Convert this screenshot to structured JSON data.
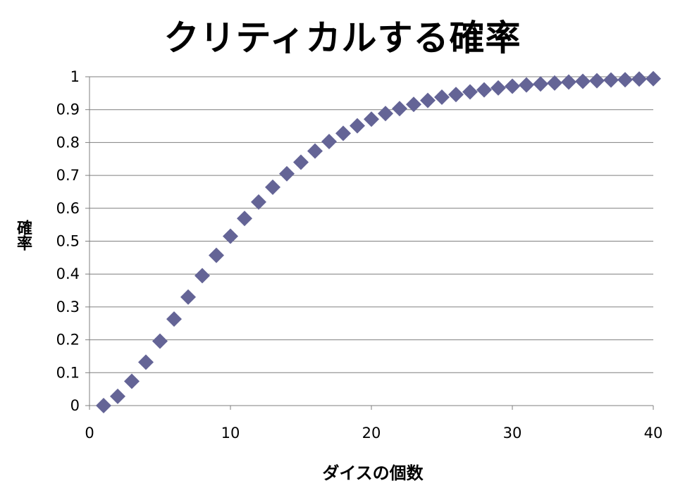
{
  "chart_data": {
    "type": "scatter",
    "title": "クリティカルする確率",
    "xlabel": "ダイスの個数",
    "ylabel": "確率",
    "xlim": [
      0,
      40
    ],
    "ylim": [
      0,
      1
    ],
    "x_ticks": [
      0,
      10,
      20,
      30,
      40
    ],
    "x_tick_labels": [
      "0",
      "10",
      "20",
      "30",
      "40"
    ],
    "y_ticks": [
      0,
      0.1,
      0.2,
      0.3,
      0.4,
      0.5,
      0.6,
      0.7,
      0.8,
      0.9,
      1
    ],
    "y_tick_labels": [
      "0",
      "0.1",
      "0.2",
      "0.3",
      "0.4",
      "0.5",
      "0.6",
      "0.7",
      "0.8",
      "0.9",
      "1"
    ],
    "grid": "horizontal",
    "marker": "diamond",
    "marker_color": "#646496",
    "series": [
      {
        "x": [
          1,
          2,
          3,
          4,
          5,
          6,
          7,
          8,
          9,
          10,
          11,
          12,
          13,
          14,
          15,
          16,
          17,
          18,
          19,
          20,
          21,
          22,
          23,
          24,
          25,
          26,
          27,
          28,
          29,
          30,
          31,
          32,
          33,
          34,
          35,
          36,
          37,
          38,
          39,
          40
        ],
        "y": [
          0,
          0.028,
          0.074,
          0.132,
          0.196,
          0.263,
          0.33,
          0.395,
          0.457,
          0.515,
          0.569,
          0.619,
          0.664,
          0.705,
          0.74,
          0.774,
          0.803,
          0.828,
          0.851,
          0.871,
          0.888,
          0.903,
          0.916,
          0.928,
          0.938,
          0.946,
          0.954,
          0.96,
          0.966,
          0.971,
          0.975,
          0.978,
          0.981,
          0.984,
          0.986,
          0.988,
          0.99,
          0.991,
          0.993,
          0.994
        ]
      }
    ]
  }
}
